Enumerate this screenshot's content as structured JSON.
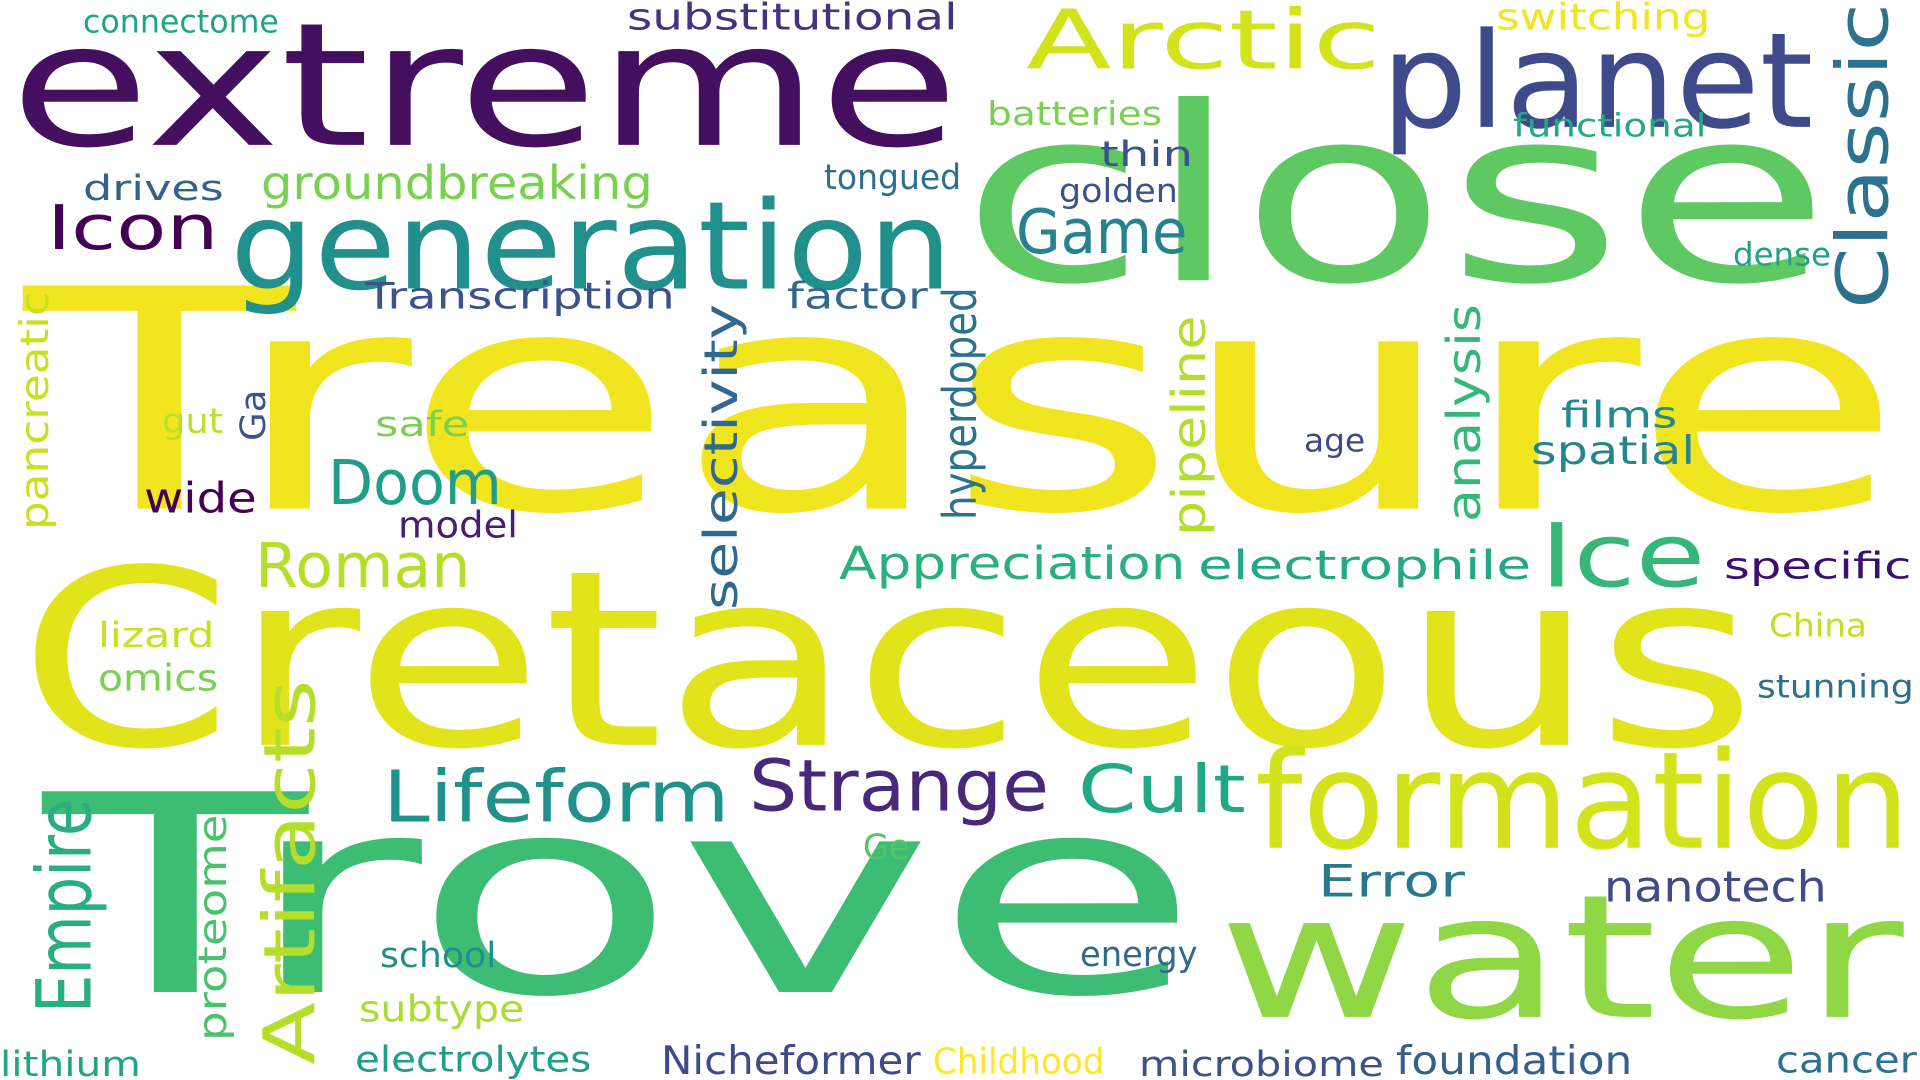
{
  "words": [
    {
      "text": "Treasure",
      "color": "#f0e51f"
    },
    {
      "text": "Cretaceous",
      "color": "#e2e41b"
    },
    {
      "text": "Trove",
      "color": "#3dbc74"
    },
    {
      "text": "close",
      "color": "#5ec962"
    },
    {
      "text": "extreme",
      "color": "#440f5f"
    },
    {
      "text": "water",
      "color": "#8fd744"
    },
    {
      "text": "generation",
      "color": "#21908d"
    },
    {
      "text": "formation",
      "color": "#d2e21b"
    },
    {
      "text": "planet",
      "color": "#3e4a89"
    },
    {
      "text": "Arctic",
      "color": "#d2e21b"
    },
    {
      "text": "Ice",
      "color": "#35b779"
    },
    {
      "text": "Classic",
      "color": "#2c728e"
    },
    {
      "text": "Lifeform",
      "color": "#21918c"
    },
    {
      "text": "Strange",
      "color": "#482878"
    },
    {
      "text": "Cult",
      "color": "#22a884"
    },
    {
      "text": "Roman",
      "color": "#b5de2b"
    },
    {
      "text": "Empire",
      "color": "#29af7f"
    },
    {
      "text": "Artifacts",
      "color": "#b5de2b"
    },
    {
      "text": "Doom",
      "color": "#1f9e89"
    },
    {
      "text": "Icon",
      "color": "#440154"
    },
    {
      "text": "Game",
      "color": "#26828e"
    },
    {
      "text": "Appreciation",
      "color": "#2ab07f"
    },
    {
      "text": "electrophile",
      "color": "#22a884"
    },
    {
      "text": "groundbreaking",
      "color": "#7ad151"
    },
    {
      "text": "selectivity",
      "color": "#31688e"
    },
    {
      "text": "pipeline",
      "color": "#b5de2b"
    },
    {
      "text": "hyperdoped",
      "color": "#2c728e"
    },
    {
      "text": "analysis",
      "color": "#35b779"
    },
    {
      "text": "Transcription",
      "color": "#3b528b"
    },
    {
      "text": "factor",
      "color": "#31688e"
    },
    {
      "text": "Error",
      "color": "#2a788e"
    },
    {
      "text": "nanotech",
      "color": "#3e4a89"
    },
    {
      "text": "proteome",
      "color": "#4ac16d"
    },
    {
      "text": "pancreatic",
      "color": "#c8e020"
    },
    {
      "text": "wide",
      "color": "#440154"
    },
    {
      "text": "model",
      "color": "#481d6f"
    },
    {
      "text": "specific",
      "color": "#3b0f70"
    },
    {
      "text": "spatial",
      "color": "#25858e"
    },
    {
      "text": "films",
      "color": "#23898e"
    },
    {
      "text": "Nicheformer",
      "color": "#3e4a89"
    },
    {
      "text": "foundation",
      "color": "#355f8d"
    },
    {
      "text": "cancer",
      "color": "#2c728e"
    },
    {
      "text": "microbiome",
      "color": "#3b528b"
    },
    {
      "text": "Childhood",
      "color": "#fde725"
    },
    {
      "text": "electrolytes",
      "color": "#1f9e89"
    },
    {
      "text": "lithium",
      "color": "#21a685"
    },
    {
      "text": "subtype",
      "color": "#addc30"
    },
    {
      "text": "school",
      "color": "#218e8d"
    },
    {
      "text": "energy",
      "color": "#31688e"
    },
    {
      "text": "omics",
      "color": "#7ad151"
    },
    {
      "text": "lizard",
      "color": "#c8e020"
    },
    {
      "text": "safe",
      "color": "#7ad151"
    },
    {
      "text": "gut",
      "color": "#bddf26"
    },
    {
      "text": "Ga",
      "color": "#3b528b"
    },
    {
      "text": "drives",
      "color": "#33638d"
    },
    {
      "text": "thin",
      "color": "#3b528b"
    },
    {
      "text": "tongued",
      "color": "#2d708e"
    },
    {
      "text": "golden",
      "color": "#3b528b"
    },
    {
      "text": "batteries",
      "color": "#7ad151"
    },
    {
      "text": "substitutional",
      "color": "#46337e"
    },
    {
      "text": "connectome",
      "color": "#20a486"
    },
    {
      "text": "switching",
      "color": "#f1e51d"
    },
    {
      "text": "functional",
      "color": "#22a884"
    },
    {
      "text": "dense",
      "color": "#1fa187"
    },
    {
      "text": "age",
      "color": "#3e4a89"
    },
    {
      "text": "China",
      "color": "#c2df23"
    },
    {
      "text": "stunning",
      "color": "#2d708e"
    },
    {
      "text": "Ge",
      "color": "#54c568"
    }
  ]
}
